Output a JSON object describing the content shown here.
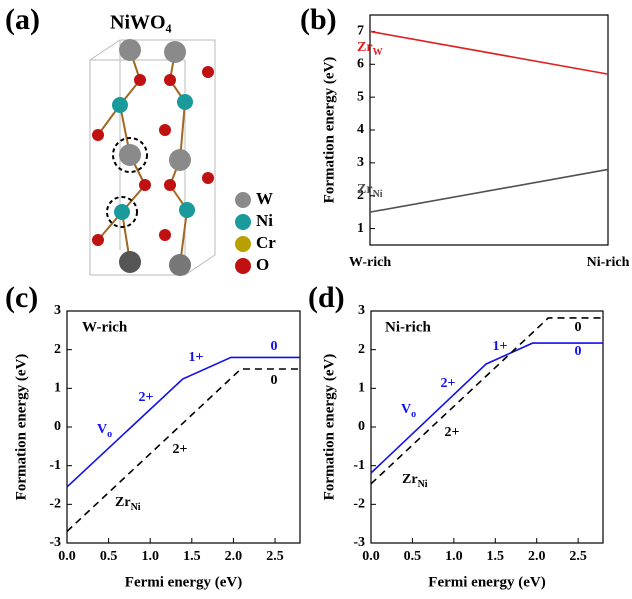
{
  "structure": {
    "label": "(a)",
    "title": "NiWO₄",
    "legend": [
      {
        "name": "W",
        "color": "#8a8a8a"
      },
      {
        "name": "Ni",
        "color": "#1a9a9a"
      },
      {
        "name": "Cr",
        "color": "#b8a000"
      },
      {
        "name": "O",
        "color": "#c01010"
      }
    ]
  },
  "chart_data": [
    {
      "type": "line",
      "label": "(b)",
      "ylabel": "Formation energy (eV)",
      "categories": [
        "W-rich",
        "Ni-rich"
      ],
      "ylim": [
        0.5,
        7.5
      ],
      "yticks": [
        1,
        2,
        3,
        4,
        5,
        6,
        7
      ],
      "series": [
        {
          "name": "Zr",
          "subscript": "W",
          "color": "#e02020",
          "values": [
            7.0,
            5.7
          ]
        },
        {
          "name": "Zr",
          "subscript": "Ni",
          "color": "#505050",
          "values": [
            1.5,
            2.8
          ]
        }
      ]
    },
    {
      "type": "line",
      "label": "(c)",
      "subtitle": "W-rich",
      "xlabel": "Fermi energy (eV)",
      "ylabel": "Formation energy (eV)",
      "xlim": [
        0,
        2.8
      ],
      "xticks": [
        {
          "value": 0,
          "label": "0.0"
        },
        0.5,
        {
          "value": 1,
          "label": "1.0"
        },
        1.5,
        {
          "value": 2,
          "label": "2.0"
        },
        2.5
      ],
      "ylim": [
        -3,
        3
      ],
      "yticks": [
        -3,
        -2,
        -1,
        0,
        1,
        2,
        3
      ],
      "series": [
        {
          "name": "V",
          "subscript": "o",
          "color": "#1010ee",
          "dash": false,
          "x": [
            0,
            1.39,
            1.97,
            2.8
          ],
          "values": [
            -1.55,
            1.24,
            1.8,
            1.8
          ]
        },
        {
          "name": "Zr",
          "subscript": "Ni",
          "color": "#000000",
          "dash": true,
          "x": [
            0,
            2.09,
            2.8
          ],
          "values": [
            -2.7,
            1.5,
            1.5
          ]
        }
      ],
      "annotations": [
        {
          "text": "2+",
          "color": "#1010ee"
        },
        {
          "text": "1+",
          "color": "#1010ee"
        },
        {
          "text": "0",
          "color": "#1010ee"
        },
        {
          "text": "0",
          "color": "#000000"
        },
        {
          "text": "2+",
          "color": "#000000"
        }
      ]
    },
    {
      "type": "line",
      "label": "(d)",
      "subtitle": "Ni-rich",
      "xlabel": "Fermi energy (eV)",
      "ylabel": "Formation energy (eV)",
      "xlim": [
        0,
        2.8
      ],
      "xticks": [
        {
          "value": 0,
          "label": "0.0"
        },
        0.5,
        {
          "value": 1,
          "label": "1.0"
        },
        1.5,
        {
          "value": 2,
          "label": "2.0"
        },
        2.5
      ],
      "ylim": [
        -3,
        3
      ],
      "yticks": [
        -3,
        -2,
        -1,
        0,
        1,
        2,
        3
      ],
      "series": [
        {
          "name": "V",
          "subscript": "o",
          "color": "#1010ee",
          "dash": false,
          "x": [
            0,
            1.39,
            1.95,
            2.8
          ],
          "values": [
            -1.19,
            1.63,
            2.17,
            2.17
          ]
        },
        {
          "name": "Zr",
          "subscript": "Ni",
          "color": "#000000",
          "dash": true,
          "x": [
            0,
            2.14,
            2.8
          ],
          "values": [
            -1.47,
            2.82,
            2.82
          ]
        }
      ],
      "annotations": [
        {
          "text": "0",
          "color": "#000000"
        },
        {
          "text": "0",
          "color": "#1010ee"
        },
        {
          "text": "1+",
          "color": "#1010ee"
        },
        {
          "text": "2+",
          "color": "#1010ee"
        },
        {
          "text": "2+",
          "color": "#000000"
        }
      ]
    }
  ]
}
